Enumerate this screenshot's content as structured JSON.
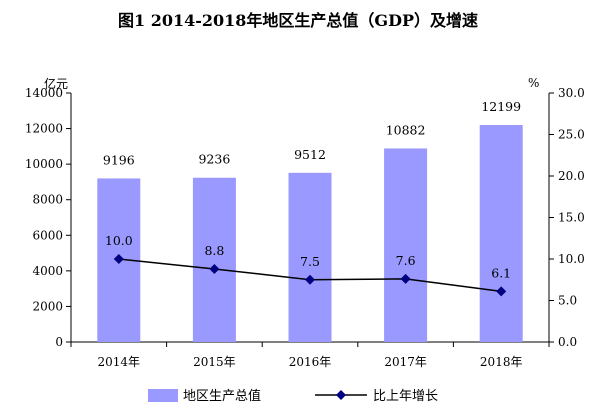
{
  "chart_data": {
    "type": "bar",
    "title": "图1     2014-2018年地区生产总值（GDP）及增速",
    "categories": [
      "2014年",
      "2015年",
      "2016年",
      "2017年",
      "2018年"
    ],
    "y_left_unit": "亿元",
    "y_right_unit": "%",
    "ylim_left": [
      0,
      14000
    ],
    "ylim_right": [
      0,
      30
    ],
    "y_left_ticks": [
      "0",
      "2000",
      "4000",
      "6000",
      "8000",
      "10000",
      "12000",
      "14000"
    ],
    "y_right_ticks": [
      "0.0",
      "5.0",
      "10.0",
      "15.0",
      "20.0",
      "25.0",
      "30.0"
    ],
    "grid": false,
    "legend_position": "bottom",
    "series": [
      {
        "name": "地区生产总值",
        "type": "bar",
        "axis": "left",
        "color": "#9999ff",
        "values": [
          9196,
          9236,
          9512,
          10882,
          12199
        ],
        "labels": [
          "9196",
          "9236",
          "9512",
          "10882",
          "12199"
        ]
      },
      {
        "name": "比上年增长",
        "type": "line",
        "axis": "right",
        "color": "#000080",
        "values": [
          10.0,
          8.8,
          7.5,
          7.6,
          6.1
        ],
        "labels": [
          "10.0",
          "8.8",
          "7.5",
          "7.6",
          "6.1"
        ]
      }
    ]
  }
}
